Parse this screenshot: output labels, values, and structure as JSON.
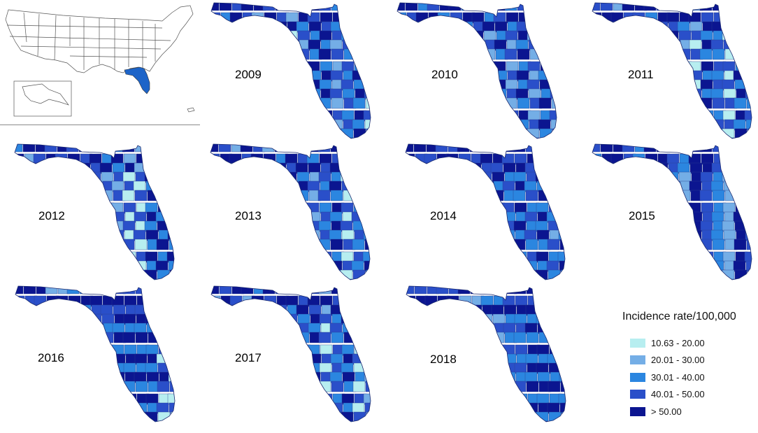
{
  "panels": [
    {
      "year": "2009"
    },
    {
      "year": "2010"
    },
    {
      "year": "2011"
    },
    {
      "year": "2012"
    },
    {
      "year": "2013"
    },
    {
      "year": "2014"
    },
    {
      "year": "2015"
    },
    {
      "year": "2016"
    },
    {
      "year": "2017"
    },
    {
      "year": "2018"
    }
  ],
  "legend": {
    "title": "Incidence rate/100,000",
    "items": [
      {
        "label": "10.63 - 20.00",
        "color": "#b7eef0"
      },
      {
        "label": "20.01 - 30.00",
        "color": "#74aee6"
      },
      {
        "label": "30.01 - 40.00",
        "color": "#2b86e0"
      },
      {
        "label": "40.01 - 50.00",
        "color": "#2a4fc9"
      },
      {
        "label": "> 50.00",
        "color": "#0b1590"
      }
    ]
  },
  "inset": {
    "highlighted_state_color": "#1d64c8"
  }
}
